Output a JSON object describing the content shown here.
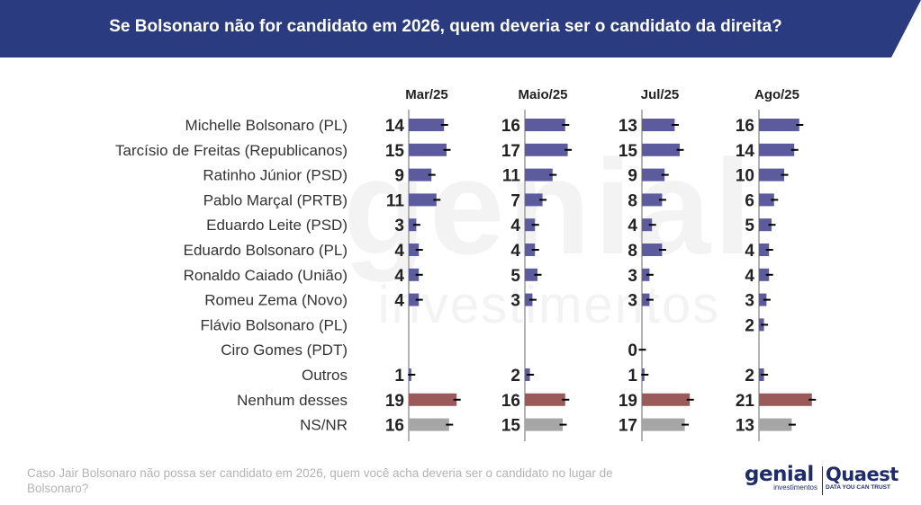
{
  "header": {
    "title": "Se Bolsonaro não for candidato em 2026, quem deveria ser o candidato da direita?",
    "bg_color": "#2a3c7f"
  },
  "watermark": {
    "line1": "genial",
    "line2": "investimentos"
  },
  "footnote": "Caso Jair Bolsonaro não possa ser candidato em 2026, quem você acha deveria ser o candidato no lugar de Bolsonaro?",
  "logos": {
    "genial_main": "genial",
    "genial_sub": "investimentos",
    "quaest_main": "Quaest",
    "quaest_sub": "DATA YOU CAN TRUST"
  },
  "chart_data": {
    "type": "bar",
    "orientation": "horizontal",
    "panels": [
      "Mar/25",
      "Maio/25",
      "Jul/25",
      "Ago/25"
    ],
    "categories": [
      "Michelle Bolsonaro (PL)",
      "Tarcísio de Freitas (Republicanos)",
      "Ratinho Júnior (PSD)",
      "Pablo Marçal (PRTB)",
      "Eduardo Leite (PSD)",
      "Eduardo Bolsonaro (PL)",
      "Ronaldo Caiado (União)",
      "Romeu Zema (Novo)",
      "Flávio Bolsonaro (PL)",
      "Ciro Gomes (PDT)",
      "Outros",
      "Nenhum desses",
      "NS/NR"
    ],
    "series": [
      {
        "panel": "Mar/25",
        "values": [
          14,
          15,
          9,
          11,
          3,
          4,
          4,
          4,
          null,
          null,
          1,
          19,
          16
        ]
      },
      {
        "panel": "Maio/25",
        "values": [
          16,
          17,
          11,
          7,
          4,
          4,
          5,
          3,
          null,
          null,
          2,
          16,
          15
        ]
      },
      {
        "panel": "Jul/25",
        "values": [
          13,
          15,
          9,
          8,
          4,
          8,
          3,
          3,
          null,
          0,
          1,
          19,
          17
        ]
      },
      {
        "panel": "Ago/25",
        "values": [
          16,
          14,
          10,
          6,
          5,
          4,
          4,
          3,
          2,
          null,
          2,
          21,
          13
        ]
      }
    ],
    "error_bars": true,
    "colors": {
      "candidate": "#5b5b9e",
      "nenhum": "#9a5a5a",
      "nsnr": "#a6a6a6",
      "axis": "#b3b3b3",
      "text": "#333333",
      "value": "#222222"
    }
  }
}
